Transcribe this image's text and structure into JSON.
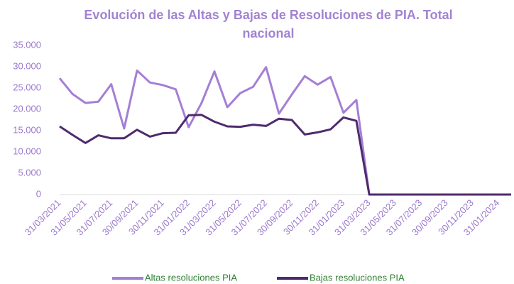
{
  "chart_data": {
    "type": "line",
    "title": "Evolución de las Altas y Bajas de Resoluciones de PIA. Total nacional",
    "categories": [
      "31/03/2021",
      null,
      "31/05/2021",
      null,
      "31/07/2021",
      null,
      "30/09/2021",
      null,
      "30/11/2021",
      null,
      "31/01/2022",
      null,
      "31/03/2022",
      null,
      "31/05/2022",
      null,
      "31/07/2022",
      null,
      "30/09/2022",
      null,
      "30/11/2022",
      null,
      "31/01/2023",
      null,
      "31/03/2023",
      null,
      "31/05/2023",
      null,
      "31/07/2023",
      null,
      "30/09/2023",
      null,
      "30/11/2023",
      null,
      "31/01/2024",
      null
    ],
    "series": [
      {
        "name": "Altas resoluciones PIA",
        "color": "#a47fd4",
        "values": [
          27300,
          23600,
          21500,
          21800,
          25900,
          15500,
          29100,
          26300,
          25700,
          24700,
          15800,
          21500,
          28900,
          20500,
          23800,
          25300,
          29900,
          19000,
          23500,
          27800,
          25800,
          27600,
          19200,
          22200,
          0,
          0,
          0,
          0,
          0,
          0,
          0,
          0,
          0,
          0,
          0,
          0
        ]
      },
      {
        "name": "Bajas resoluciones PIA",
        "color": "#4f2a6e",
        "values": [
          16000,
          14000,
          12100,
          13900,
          13200,
          13200,
          15200,
          13600,
          14400,
          14500,
          18600,
          18700,
          17100,
          16000,
          15900,
          16400,
          16100,
          17800,
          17500,
          14100,
          14600,
          15300,
          18100,
          17300,
          0,
          0,
          0,
          0,
          0,
          0,
          0,
          0,
          0,
          0,
          0,
          0
        ]
      }
    ],
    "ylim": [
      0,
      35000
    ],
    "yticks": [
      0,
      {
        "value": 5000,
        "label": "5.000"
      },
      {
        "value": 10000,
        "label": "10.000"
      },
      {
        "value": 15000,
        "label": "15.000"
      },
      {
        "value": 20000,
        "label": "20.000"
      },
      {
        "value": 25000,
        "label": "25.000"
      },
      {
        "value": 30000,
        "label": "30.000"
      },
      {
        "value": 35000,
        "label": "35.000"
      }
    ]
  }
}
